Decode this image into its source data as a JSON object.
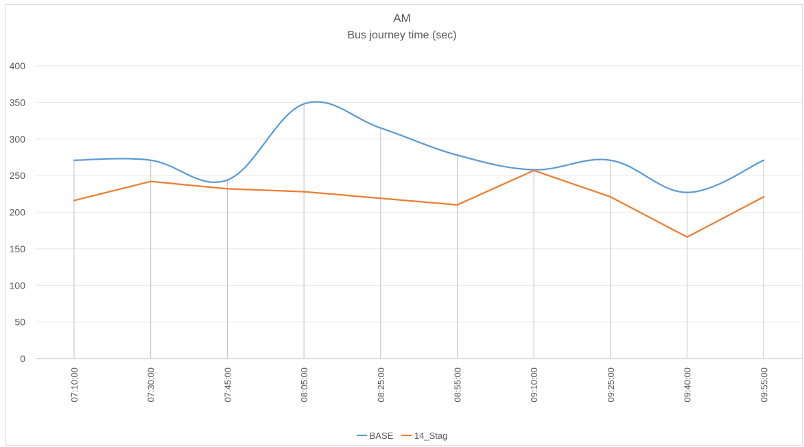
{
  "chart_data": {
    "type": "line",
    "title": "AM",
    "subtitle": "Bus journey time (sec)",
    "xlabel": "",
    "ylabel": "",
    "categories": [
      "07:10:00",
      "07:30:00",
      "07:45:00",
      "08:05:00",
      "08:25:00",
      "08:55:00",
      "09:10:00",
      "09:25:00",
      "09:40:00",
      "09:55:00"
    ],
    "ylim": [
      0,
      400
    ],
    "yticks": [
      "0",
      "50",
      "100",
      "150",
      "200",
      "250",
      "300",
      "350",
      "400"
    ],
    "grid": true,
    "drop_lines": true,
    "legend_position": "bottom",
    "series": [
      {
        "name": "BASE",
        "color": "#5b9bd5",
        "smooth": true,
        "values": [
          271,
          271,
          244,
          348,
          315,
          278,
          258,
          271,
          227,
          271
        ]
      },
      {
        "name": "14_Stag",
        "color": "#ed7d31",
        "smooth": false,
        "values": [
          216,
          242,
          232,
          228,
          219,
          210,
          257,
          221,
          166,
          221
        ]
      }
    ]
  }
}
